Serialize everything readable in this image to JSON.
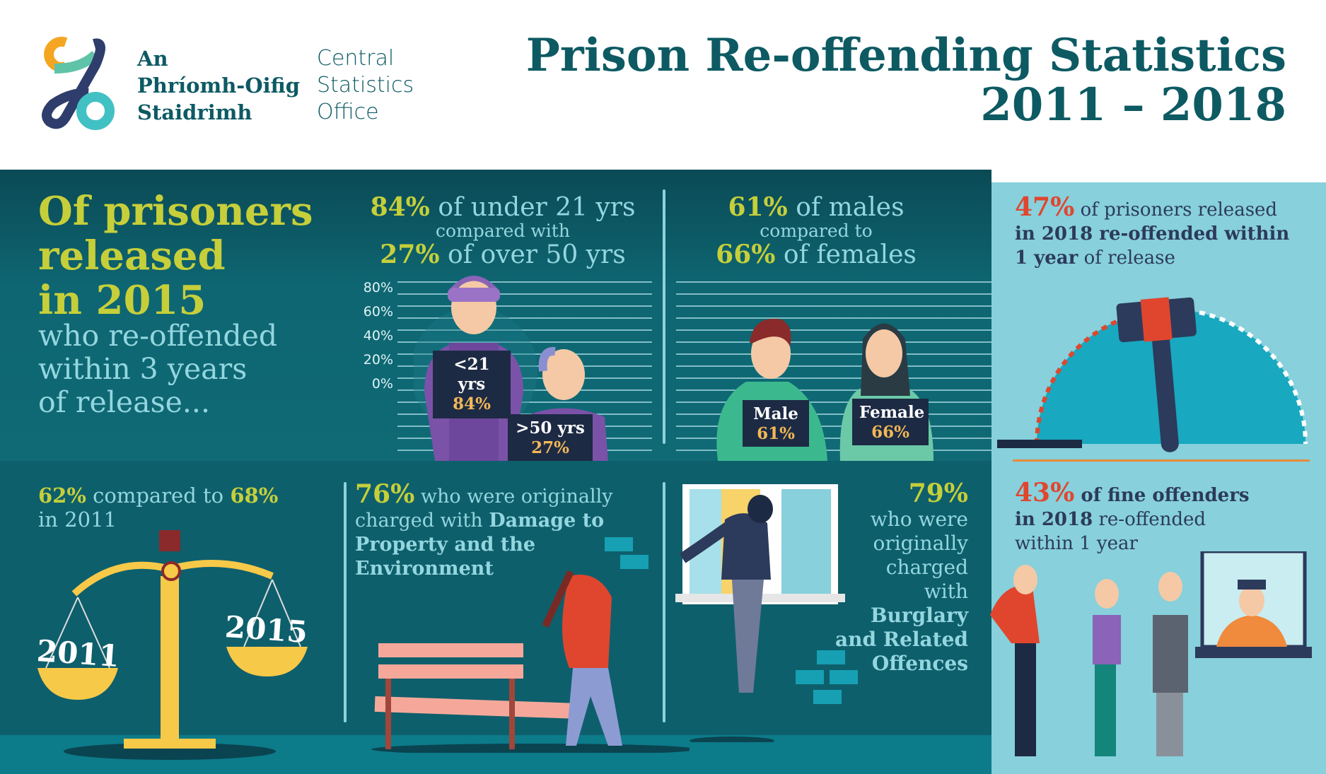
{
  "header": {
    "logo_irish": [
      "An",
      "Phríomh-Oifig",
      "Staidrimh"
    ],
    "logo_english": [
      "Central",
      "Statistics",
      "Office"
    ],
    "title_line1": "Prison Re-offending Statistics",
    "title_line2": "2011 – 2018"
  },
  "intro": {
    "headline": [
      "Of prisoners",
      "released",
      "in 2015"
    ],
    "subline": [
      "who re-offended",
      "within 3 years",
      "of release..."
    ]
  },
  "age": {
    "pct_under21": "84%",
    "text_under21": " of under 21 yrs",
    "compared": "compared with",
    "pct_over50": "27%",
    "text_over50": " of over 50 yrs",
    "y_ticks": [
      "80%",
      "60%",
      "40%",
      "20%",
      "0%"
    ],
    "sign_under21_label": "<21 yrs",
    "sign_under21_value": "84%",
    "sign_over50_label": ">50 yrs",
    "sign_over50_value": "27%"
  },
  "gender": {
    "pct_male": "61%",
    "text_male": " of males",
    "compared": "compared to",
    "pct_female": "66%",
    "text_female": " of females",
    "sign_male_label": "Male",
    "sign_male_value": "61%",
    "sign_female_label": "Female",
    "sign_female_value": "66%"
  },
  "released2018": {
    "pct": "47%",
    "t1": " of prisoners released",
    "t2": "in 2018 re-offended within",
    "t3b": "1 year",
    "t3": " of release"
  },
  "fine": {
    "pct": "43%",
    "t1b": " of fine offenders",
    "t2b": "in 2018",
    "t2": " re-offended",
    "t3": "within 1 year"
  },
  "trend": {
    "pct2015": "62%",
    "mid": " compared to ",
    "pct2011": "68%",
    "t2": "in 2011",
    "scale_left": "2011",
    "scale_right": "2015"
  },
  "damage": {
    "pct": "76%",
    "t1": " who were originally",
    "t2": "charged with ",
    "t2b": "Damage to",
    "t3b": "Property and the",
    "t4b": "Environment"
  },
  "burglary": {
    "pct": "79%",
    "lines": [
      "who were",
      "originally",
      "charged",
      "with"
    ],
    "bold_lines": [
      "Burglary",
      "and Related",
      "Offences"
    ]
  },
  "colors": {
    "dark_teal": "#0d5a63",
    "yellow": "#c6cf3a",
    "light_blue": "#87d0dc",
    "red": "#e0462e",
    "navy": "#2c3a5c"
  }
}
